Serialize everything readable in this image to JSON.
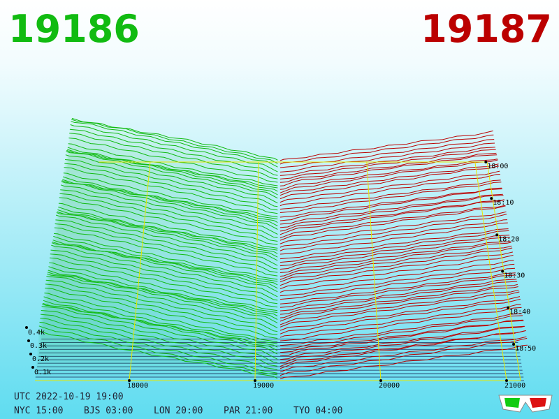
{
  "chart_data": {
    "type": "depth3d",
    "bid": "19186",
    "ask": "19187",
    "bid_color": "#11bb11",
    "ask_color": "#bb0000",
    "xticks": [
      18000,
      19000,
      20000,
      21000
    ],
    "zticks": [
      {
        "value": 100,
        "label": "0.1k"
      },
      {
        "value": 200,
        "label": "0.2k"
      },
      {
        "value": 300,
        "label": "0.3k"
      },
      {
        "value": 400,
        "label": "0.4k"
      }
    ],
    "time_ticks": [
      "18:00",
      "18:10",
      "18:20",
      "18:30",
      "18:40",
      "18:50"
    ],
    "utc": "UTC 2022-10-19 19:00",
    "clocks": [
      "NYC 15:00",
      "BJS 03:00",
      "LON 20:00",
      "PAR 21:00",
      "TYO 04:00"
    ]
  }
}
